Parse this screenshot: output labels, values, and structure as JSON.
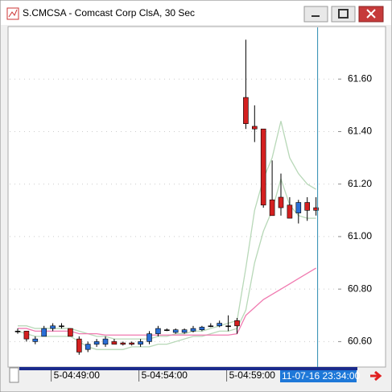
{
  "window": {
    "title": "S.CMCSA - Comcast Corp ClsA, 30 Sec"
  },
  "chart_data": {
    "type": "candlestick",
    "categories": [
      null,
      null,
      null,
      null,
      "5-04:49:00",
      null,
      null,
      null,
      null,
      null,
      null,
      null,
      null,
      null,
      "5-04:54:00",
      null,
      null,
      null,
      null,
      null,
      null,
      null,
      null,
      null,
      "5-04:59:00",
      null,
      null,
      null,
      null,
      null,
      null,
      null,
      null,
      null,
      null
    ],
    "open": [
      60.64,
      60.64,
      60.6,
      60.62,
      60.65,
      60.66,
      60.65,
      60.61,
      60.57,
      60.59,
      60.59,
      60.6,
      60.595,
      60.595,
      60.59,
      60.6,
      60.63,
      60.645,
      60.635,
      60.635,
      60.64,
      60.645,
      60.66,
      60.66,
      60.66,
      60.68,
      61.53,
      61.42,
      61.41,
      61.14,
      61.15,
      61.12,
      61.09,
      61.13,
      61.11
    ],
    "high": [
      60.65,
      60.64,
      60.62,
      60.66,
      60.67,
      60.67,
      60.65,
      60.62,
      60.6,
      60.61,
      60.62,
      60.61,
      60.6,
      60.6,
      60.61,
      60.64,
      60.66,
      60.65,
      60.65,
      60.65,
      60.66,
      60.66,
      60.67,
      60.68,
      60.7,
      60.69,
      61.75,
      61.5,
      61.41,
      61.29,
      61.24,
      61.15,
      61.14,
      61.15,
      61.15
    ],
    "low": [
      60.63,
      60.6,
      60.59,
      60.62,
      60.64,
      60.65,
      60.62,
      60.55,
      60.56,
      60.58,
      60.58,
      60.59,
      60.585,
      60.585,
      60.58,
      60.59,
      60.62,
      60.64,
      60.63,
      60.63,
      60.635,
      60.64,
      60.655,
      60.655,
      60.64,
      60.63,
      61.41,
      61.36,
      61.11,
      61.08,
      61.08,
      61.07,
      61.05,
      61.06,
      61.08
    ],
    "close": [
      60.64,
      60.61,
      60.61,
      60.65,
      60.66,
      60.66,
      60.62,
      60.56,
      60.59,
      60.6,
      60.61,
      60.59,
      60.59,
      60.59,
      60.6,
      60.63,
      60.65,
      60.645,
      60.645,
      60.645,
      60.65,
      60.655,
      60.66,
      60.67,
      60.66,
      60.66,
      61.43,
      61.41,
      61.12,
      61.08,
      61.11,
      61.07,
      61.13,
      61.1,
      61.1
    ],
    "up_color": "#2a6fd6",
    "down_color": "#d42020",
    "flat_color": "#000000",
    "overlays": [
      {
        "color": "#b8d8b8",
        "values": [
          60.66,
          60.66,
          60.65,
          60.65,
          60.65,
          60.65,
          60.65,
          60.64,
          60.63,
          60.62,
          60.62,
          60.61,
          60.61,
          60.61,
          60.61,
          60.61,
          60.62,
          60.62,
          60.63,
          60.63,
          60.64,
          60.64,
          60.65,
          60.66,
          60.67,
          60.68,
          60.88,
          61.1,
          61.22,
          61.3,
          61.44,
          61.3,
          61.24,
          61.2,
          61.18
        ]
      },
      {
        "color": "#b8d8b8",
        "values": [
          60.64,
          60.63,
          60.62,
          60.62,
          60.62,
          60.62,
          60.62,
          60.6,
          60.58,
          60.57,
          60.57,
          60.57,
          60.57,
          60.58,
          60.58,
          60.58,
          60.59,
          60.59,
          60.6,
          60.61,
          60.62,
          60.62,
          60.63,
          60.64,
          60.64,
          60.65,
          60.72,
          60.9,
          61.02,
          61.1,
          61.22,
          61.12,
          61.08,
          61.07,
          61.07
        ]
      },
      {
        "color": "#f07ab0",
        "values": [
          60.65,
          60.65,
          60.64,
          60.64,
          60.64,
          60.64,
          60.64,
          60.63,
          60.63,
          60.63,
          60.625,
          60.625,
          60.625,
          60.625,
          60.625,
          60.625,
          60.625,
          60.625,
          60.625,
          60.625,
          60.625,
          60.625,
          60.625,
          60.625,
          60.625,
          60.63,
          60.7,
          60.73,
          60.76,
          60.78,
          60.8,
          60.82,
          60.84,
          60.86,
          60.88
        ]
      }
    ],
    "ylim": [
      60.5,
      61.8
    ],
    "yticks": [
      {
        "value": 60.6,
        "label": "60.60"
      },
      {
        "value": 60.8,
        "label": "60.80"
      },
      {
        "value": 61.0,
        "label": "61.00"
      },
      {
        "value": 61.2,
        "label": "61.20"
      },
      {
        "value": 61.4,
        "label": "61.40"
      },
      {
        "value": 61.6,
        "label": "61.60"
      }
    ],
    "grid": true,
    "cursor": {
      "label": "11-07-16 23:34:00",
      "color": "#2a8ab0"
    }
  }
}
